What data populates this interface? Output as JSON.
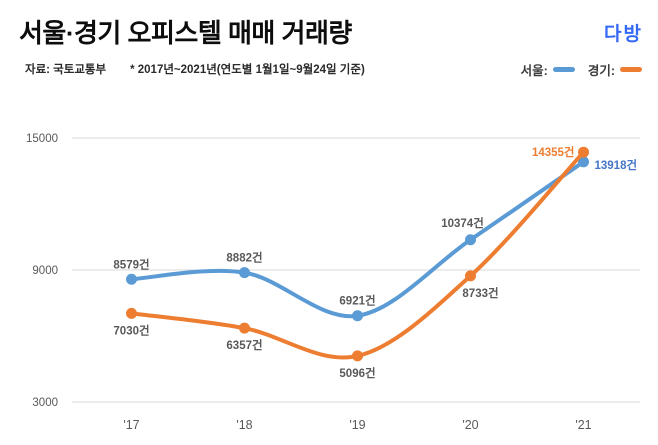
{
  "header": {
    "title": "서울·경기 오피스텔 매매 거래량",
    "source": "자료: 국토교통부",
    "note": "* 2017년~2021년(연도별 1월1일~9월24일 기준)",
    "logo_text": "다방",
    "logo_color": "#3569F5"
  },
  "legend": [
    {
      "label": "서울:",
      "color": "#5B9BD5"
    },
    {
      "label": "경기:",
      "color": "#ED7D31"
    }
  ],
  "chart_data": {
    "type": "line",
    "smooth": true,
    "title": "서울·경기 오피스텔 매매 거래량",
    "xlabel": "",
    "ylabel": "",
    "unit": "건",
    "categories": [
      "'17",
      "'18",
      "'19",
      "'20",
      "'21"
    ],
    "series": [
      {
        "name": "서울",
        "color": "#5B9BD5",
        "values": [
          8579,
          8882,
          6921,
          10374,
          13918
        ],
        "labels": [
          "8579건",
          "8882건",
          "6921건",
          "10374건",
          "13918건"
        ],
        "label_pos": [
          "above",
          "above",
          "above",
          "above-left",
          "right"
        ],
        "label_colors": [
          "#595959",
          "#595959",
          "#595959",
          "#595959",
          "#4576C8"
        ]
      },
      {
        "name": "경기",
        "color": "#ED7D31",
        "values": [
          7030,
          6357,
          5096,
          8733,
          14355
        ],
        "labels": [
          "7030건",
          "6357건",
          "5096건",
          "8733건",
          "14355건"
        ],
        "label_pos": [
          "below",
          "below",
          "below",
          "below-right",
          "left"
        ],
        "label_colors": [
          "#595959",
          "#595959",
          "#595959",
          "#595959",
          "#ED7D31"
        ]
      }
    ],
    "yticks": [
      15000,
      9000,
      3000
    ],
    "ylim": [
      3000,
      15600
    ],
    "grid": "horizontal",
    "grid_color": "#D9D9D9",
    "axis_color": "#595959",
    "legend_position": "top-right"
  }
}
